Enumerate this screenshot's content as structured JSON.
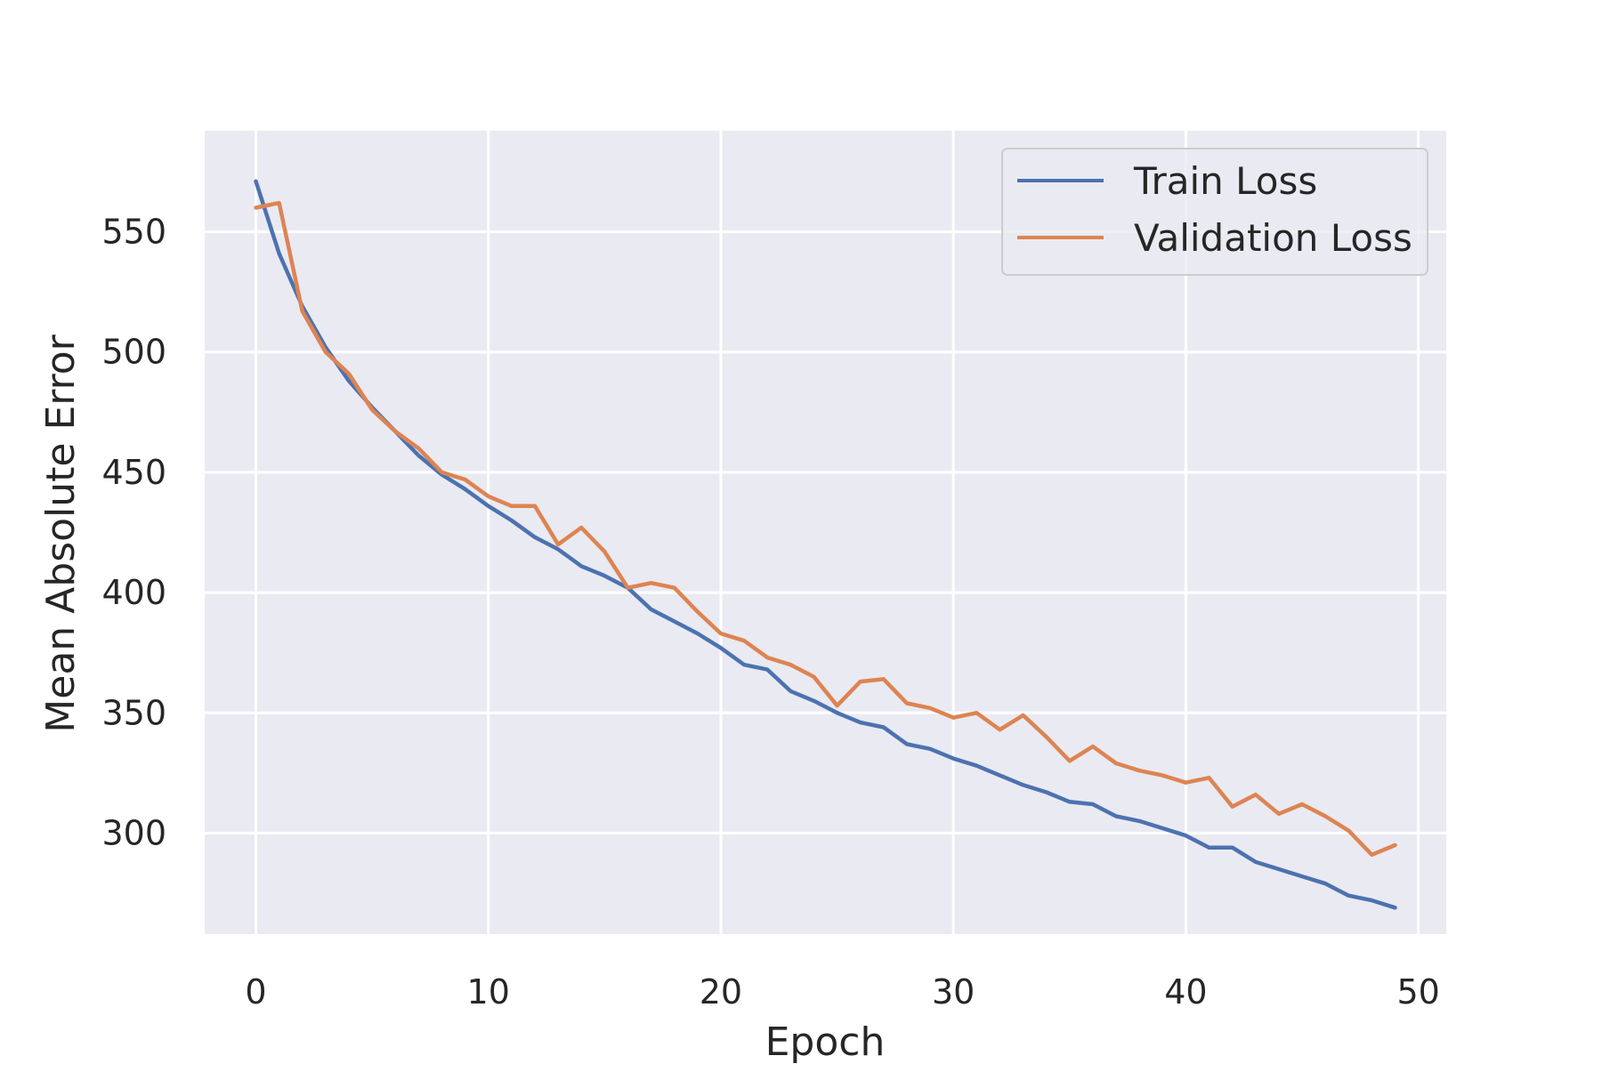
{
  "chart_data": {
    "type": "line",
    "title": "",
    "xlabel": "Epoch",
    "ylabel": "Mean Absolute Error",
    "xlim": [
      -2.2,
      51.2
    ],
    "ylim": [
      258,
      592
    ],
    "xticks": [
      0,
      10,
      20,
      30,
      40,
      50
    ],
    "yticks": [
      300,
      350,
      400,
      450,
      500,
      550
    ],
    "grid": true,
    "legend_position": "top-right",
    "colors": {
      "background": "#eaeaf2",
      "grid": "#ffffff",
      "Train Loss": "#4c72b0",
      "Validation Loss": "#dd8452"
    },
    "x": [
      0,
      1,
      2,
      3,
      4,
      5,
      6,
      7,
      8,
      9,
      10,
      11,
      12,
      13,
      14,
      15,
      16,
      17,
      18,
      19,
      20,
      21,
      22,
      23,
      24,
      25,
      26,
      27,
      28,
      29,
      30,
      31,
      32,
      33,
      34,
      35,
      36,
      37,
      38,
      39,
      40,
      41,
      42,
      43,
      44,
      45,
      46,
      47,
      48,
      49
    ],
    "series": [
      {
        "name": "Train Loss",
        "values": [
          571,
          541,
          519,
          502,
          488,
          477,
          467,
          457,
          449,
          443,
          436,
          430,
          423,
          418,
          411,
          407,
          402,
          393,
          388,
          383,
          377,
          370,
          368,
          359,
          355,
          350,
          346,
          344,
          337,
          335,
          331,
          328,
          324,
          320,
          317,
          313,
          312,
          307,
          305,
          302,
          299,
          294,
          294,
          288,
          285,
          282,
          279,
          274,
          272,
          269
        ]
      },
      {
        "name": "Validation Loss",
        "values": [
          560,
          562,
          517,
          500,
          491,
          476,
          467,
          460,
          450,
          447,
          440,
          436,
          436,
          420,
          427,
          417,
          402,
          404,
          402,
          392,
          383,
          380,
          373,
          370,
          365,
          353,
          363,
          364,
          354,
          352,
          348,
          350,
          343,
          349,
          340,
          330,
          336,
          329,
          326,
          324,
          321,
          323,
          311,
          316,
          308,
          312,
          307,
          301,
          291,
          295
        ]
      }
    ]
  }
}
